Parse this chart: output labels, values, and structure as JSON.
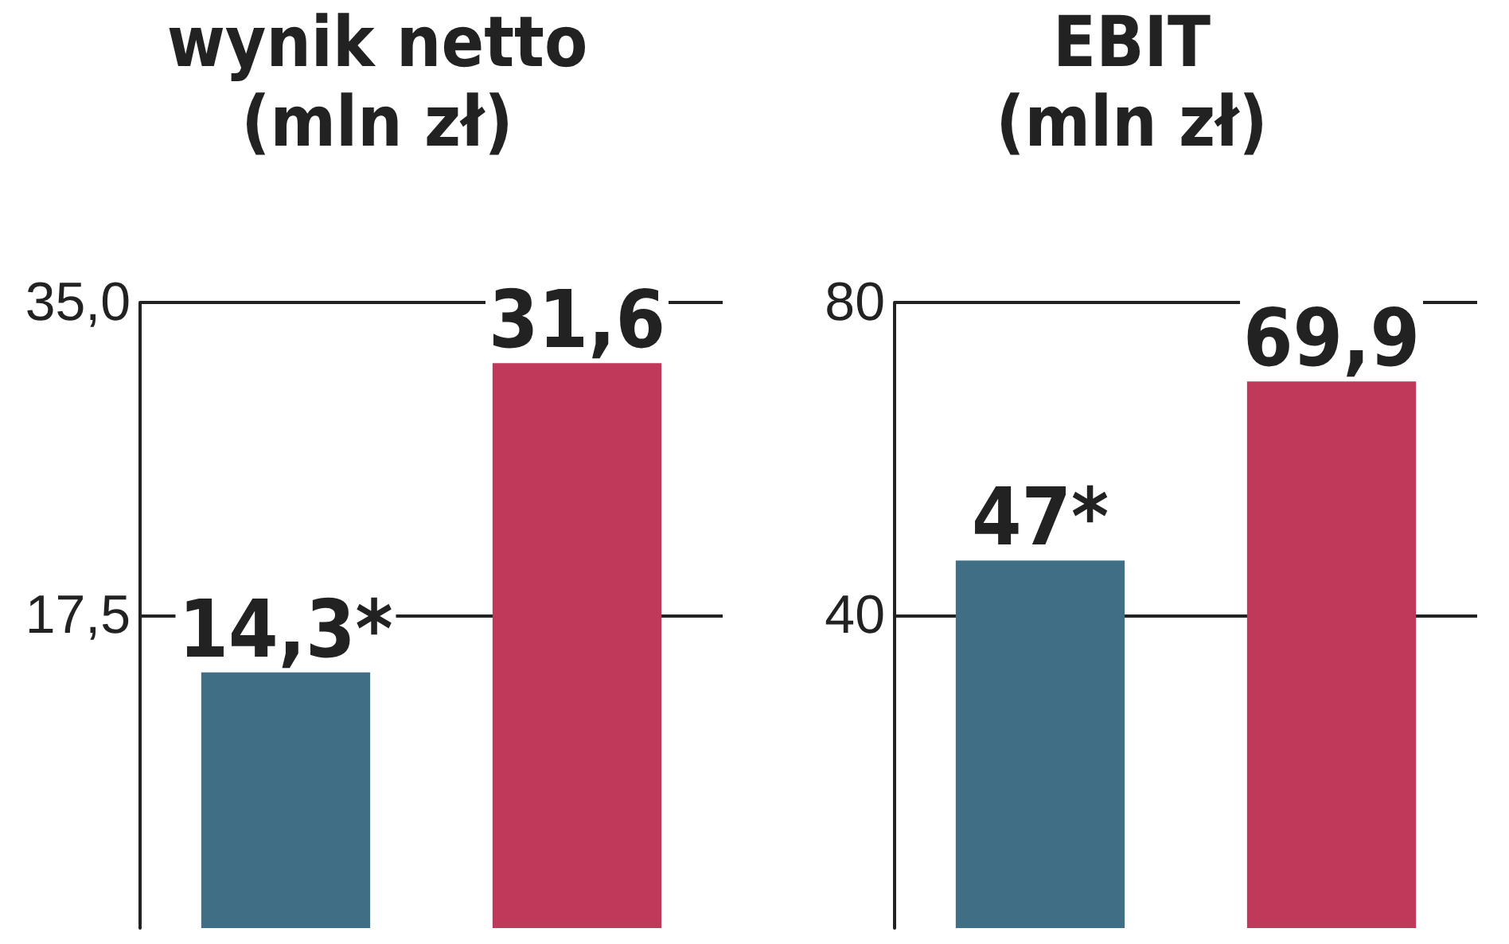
{
  "chart_data": [
    {
      "type": "bar",
      "title": "wynik netto",
      "subtitle": "(mln zł)",
      "categories": [
        null,
        null
      ],
      "values": [
        14.3,
        31.6
      ],
      "colors": [
        "#3f6e85",
        "#c0395a"
      ],
      "value_labels": [
        "14,3*",
        "31,6"
      ],
      "ylim": [
        0,
        35
      ],
      "yticks": [
        {
          "value": 17.5,
          "label": "17,5"
        },
        {
          "value": 35,
          "label": "35,0"
        }
      ],
      "grid": "y"
    },
    {
      "type": "bar",
      "title": "EBIT",
      "subtitle": "(mln zł)",
      "categories": [
        null,
        null
      ],
      "values": [
        47,
        69.9
      ],
      "colors": [
        "#3f6e85",
        "#c0395a"
      ],
      "value_labels": [
        "47*",
        "69,9"
      ],
      "ylim": [
        0,
        80
      ],
      "yticks": [
        40,
        80
      ],
      "grid": "y"
    }
  ]
}
